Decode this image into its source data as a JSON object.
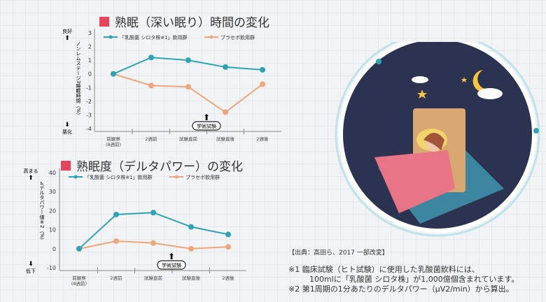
{
  "colors": {
    "accent": "#e8455d",
    "teal": "#2ea3b4",
    "orange": "#eea67c",
    "navy": "#2b3350"
  },
  "chart_data": [
    {
      "type": "line",
      "title": "熟眠（深い眠り）時間の変化",
      "ylabel": "ノンレムステージ3睡眠時間（%）",
      "y_top_label": "良好",
      "y_bottom_label": "悪化",
      "ylim": [
        -4,
        3
      ],
      "yticks": [
        "3",
        "2",
        "1",
        "0",
        "-1",
        "-2",
        "-3",
        "-4"
      ],
      "categories": [
        "前観察(8週前)",
        "2週前",
        "試験直前",
        "試験直後",
        "2週後"
      ],
      "series": [
        {
          "name": "「乳酸菌 シロタ株※1」飲用群",
          "values": [
            0,
            1.2,
            1.0,
            0.5,
            0.3
          ]
        },
        {
          "name": "プラセボ飲用群",
          "values": [
            0,
            -0.85,
            -0.95,
            -2.8,
            -0.75
          ]
        }
      ],
      "annotation": "学術試験",
      "legend": "top"
    },
    {
      "type": "line",
      "title": "熟眠度（デルタパワー）の変化",
      "ylabel": "⊿デルタパワー値※2（%）",
      "y_top_label": "高まる",
      "y_bottom_label": "低下",
      "ylim": [
        -10,
        40
      ],
      "yticks": [
        "40",
        "30",
        "20",
        "10",
        "0",
        "-10"
      ],
      "categories": [
        "前観察(8週前)",
        "2週前",
        "試験直前",
        "試験直後",
        "2週後"
      ],
      "series": [
        {
          "name": "「乳酸菌 シロタ株※1」飲用群",
          "values": [
            0,
            18,
            19,
            11.5,
            7.5
          ]
        },
        {
          "name": "プラセボ飲用群",
          "values": [
            0,
            4,
            3,
            0,
            1
          ]
        }
      ],
      "annotation": "学術試験",
      "legend": "top"
    }
  ],
  "notes": {
    "source": "【出典：高田ら、2017 一部改変】",
    "n1a": "※1 臨床試験（ヒト試験）に使用した乳酸菌飲料には、",
    "n1b": "100mlに「乳酸菌 シロタ株」が1,000億個含まれています。",
    "n2": "※2 第1周期の1分あたりのデルタパワー（μV2/min）から算出。"
  }
}
